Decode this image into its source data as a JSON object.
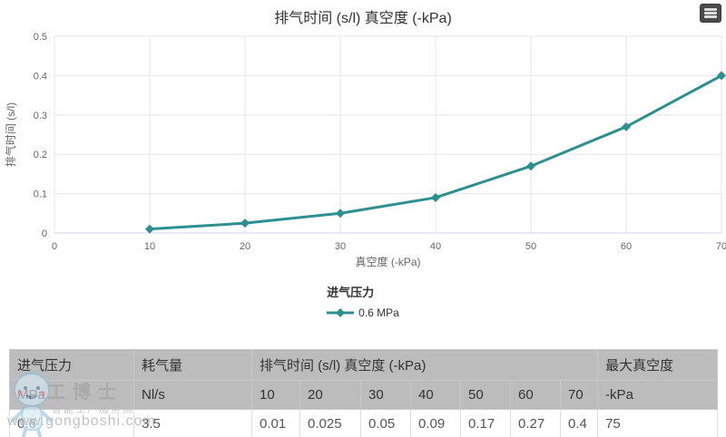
{
  "chart_data": {
    "type": "line",
    "title": "排气时间 (s/l) 真空度 (-kPa)",
    "xlabel": "真空度 (-kPa)",
    "ylabel": "排气时间 (s/l)",
    "legend_title": "进气压力",
    "legend_position": "bottom",
    "grid": true,
    "xlim": [
      0,
      70
    ],
    "ylim": [
      0,
      0.5
    ],
    "x_ticks": [
      0,
      10,
      20,
      30,
      40,
      50,
      60,
      70
    ],
    "y_ticks": [
      0,
      0.1,
      0.2,
      0.3,
      0.4,
      0.5
    ],
    "series": [
      {
        "name": "0.6 MPa",
        "color": "#2b908f",
        "marker": "diamond",
        "x": [
          10,
          20,
          30,
          40,
          50,
          60,
          70
        ],
        "values": [
          0.01,
          0.025,
          0.05,
          0.09,
          0.17,
          0.27,
          0.4
        ]
      }
    ]
  },
  "export_menu": {
    "icon": "hamburger-menu-icon"
  },
  "table": {
    "header_row": [
      "进气压力",
      "耗气量",
      "排气时间 (s/l) 真空度 (-kPa)",
      "最大真空度"
    ],
    "unit_row": [
      "MPa",
      "Nl/s",
      "10",
      "20",
      "30",
      "40",
      "50",
      "60",
      "70",
      "-kPa"
    ],
    "data_row": [
      "0.6",
      "3.5",
      "0.01",
      "0.025",
      "0.05",
      "0.09",
      "0.17",
      "0.27",
      "0.4",
      "75"
    ]
  },
  "watermark": {
    "brand": "工博士",
    "tagline": "智能工厂服务商",
    "url": "www.gongboshi.com"
  },
  "colors": {
    "series": "#2b908f",
    "grid": "#e6e6e6",
    "axis_line": "#ccd6eb",
    "tick_label": "#666666",
    "header_bg": "#bcbcbc"
  }
}
